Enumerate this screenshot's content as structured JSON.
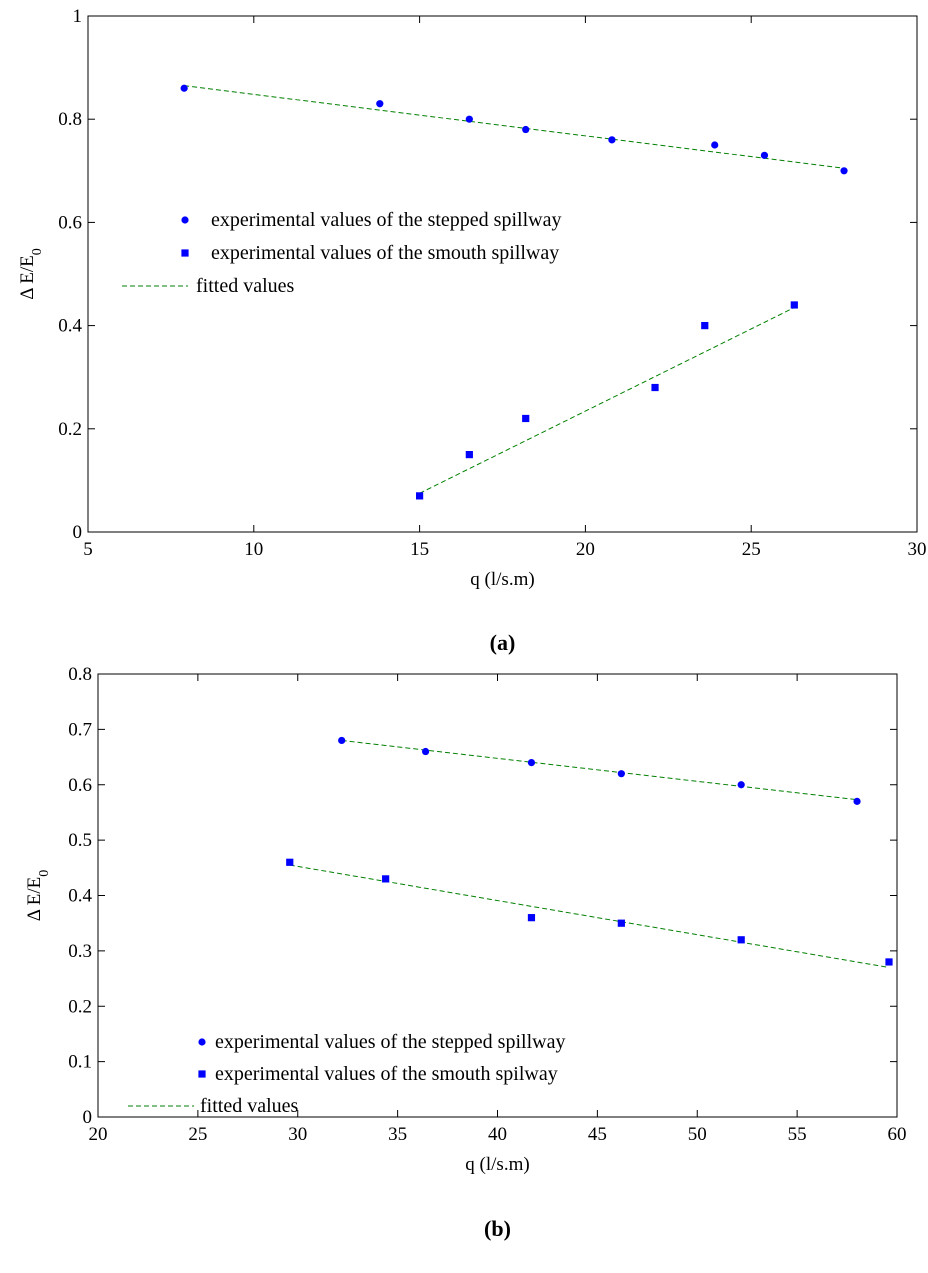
{
  "colors": {
    "points": "#0000ff",
    "fit_line": "#008000",
    "axes": "#000000"
  },
  "chart_data": [
    {
      "type": "scatter",
      "caption": "(a)",
      "xlabel": "q (l/s.m)",
      "ylabel": "Δ E/E0",
      "xlim": [
        5,
        30
      ],
      "ylim": [
        0,
        1
      ],
      "xticks": [
        5,
        10,
        15,
        20,
        25,
        30
      ],
      "yticks": [
        0,
        0.2,
        0.4,
        0.6,
        0.8,
        1
      ],
      "xtick_labels": [
        "5",
        "10",
        "15",
        "20",
        "25",
        "30"
      ],
      "ytick_labels": [
        "0",
        "0.2",
        "0.4",
        "0.6",
        "0.8",
        "1"
      ],
      "legend_position": "center-left",
      "series": [
        {
          "name": "experimental values of the stepped spillway",
          "marker": "circle",
          "x": [
            7.9,
            13.8,
            16.5,
            18.2,
            20.8,
            23.9,
            25.4,
            27.8
          ],
          "y": [
            0.86,
            0.83,
            0.8,
            0.78,
            0.76,
            0.75,
            0.73,
            0.7
          ]
        },
        {
          "name": "experimental values of the smouth spillway",
          "marker": "square",
          "x": [
            15.0,
            16.5,
            18.2,
            22.1,
            23.6,
            26.3
          ],
          "y": [
            0.07,
            0.15,
            0.22,
            0.28,
            0.4,
            0.44
          ]
        }
      ],
      "fits": [
        {
          "name": "fitted values",
          "x": [
            7.9,
            27.8
          ],
          "y": [
            0.865,
            0.705
          ]
        },
        {
          "name": "fitted values",
          "x": [
            15.0,
            26.3
          ],
          "y": [
            0.075,
            0.435
          ]
        }
      ]
    },
    {
      "type": "scatter",
      "caption": "(b)",
      "xlabel": "q (l/s.m)",
      "ylabel": "Δ E/E0",
      "xlim": [
        20,
        60
      ],
      "ylim": [
        0,
        0.8
      ],
      "xticks": [
        20,
        25,
        30,
        35,
        40,
        45,
        50,
        55,
        60
      ],
      "yticks": [
        0,
        0.1,
        0.2,
        0.3,
        0.4,
        0.5,
        0.6,
        0.7,
        0.8
      ],
      "xtick_labels": [
        "20",
        "25",
        "30",
        "35",
        "40",
        "45",
        "50",
        "55",
        "60"
      ],
      "ytick_labels": [
        "0",
        "0.1",
        "0.2",
        "0.3",
        "0.4",
        "0.5",
        "0.6",
        "0.7",
        "0.8"
      ],
      "legend_position": "bottom-left",
      "series": [
        {
          "name": "experimental values of the stepped spillway",
          "marker": "circle",
          "x": [
            32.2,
            36.4,
            41.7,
            46.2,
            52.2,
            58.0
          ],
          "y": [
            0.68,
            0.66,
            0.64,
            0.62,
            0.6,
            0.57
          ]
        },
        {
          "name": "experimental values of the smouth spilway",
          "marker": "square",
          "x": [
            29.6,
            34.4,
            41.7,
            46.2,
            52.2,
            59.6
          ],
          "y": [
            0.46,
            0.43,
            0.36,
            0.35,
            0.32,
            0.28
          ]
        }
      ],
      "fits": [
        {
          "name": "fitted values",
          "x": [
            32.2,
            58.0
          ],
          "y": [
            0.68,
            0.573
          ]
        },
        {
          "name": "fitted values",
          "x": [
            29.6,
            59.6
          ],
          "y": [
            0.455,
            0.27
          ]
        }
      ]
    }
  ]
}
